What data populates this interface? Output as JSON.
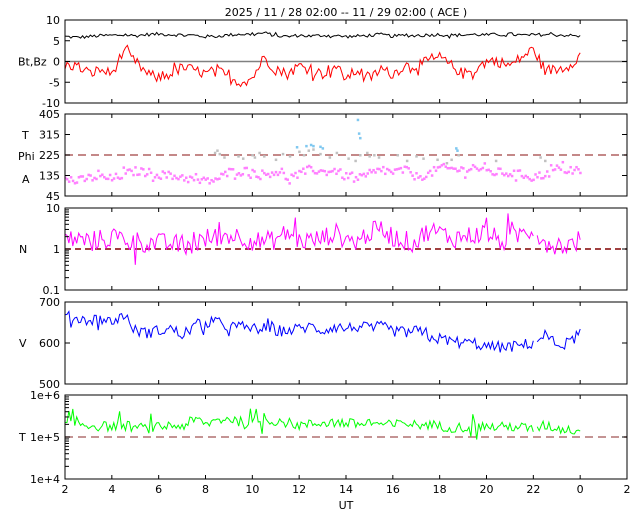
{
  "title": "2025 / 11 / 28   02:00 -- 11 / 29   02:00 ( ACE )",
  "x_axis": {
    "label": "UT",
    "tick_labels": [
      "2",
      "4",
      "6",
      "8",
      "10",
      "12",
      "14",
      "16",
      "18",
      "20",
      "22",
      "0",
      "2"
    ],
    "range_hours": [
      0,
      24
    ],
    "step_hours": 2
  },
  "chart_data": [
    {
      "type": "line",
      "id": "mag",
      "ylabel": "Bt,Bz",
      "ylim": [
        -10,
        10
      ],
      "scale": "linear",
      "tick_labels": [
        "10",
        "5",
        "0",
        "-5",
        "-10"
      ],
      "tick_values": [
        10,
        5,
        0,
        -5,
        -10
      ],
      "reference_line": {
        "value": 0,
        "color": "#808080",
        "style": "solid"
      },
      "x_step_hours": 0.5,
      "series": [
        {
          "name": "Bt",
          "color": "#000000",
          "noise": 0.4,
          "values": [
            6,
            5.8,
            6,
            6.2,
            6.3,
            6.4,
            6.2,
            6.5,
            6.6,
            6.5,
            6.4,
            6.3,
            6,
            6.1,
            6.4,
            6.6,
            6.5,
            6.9,
            6.2,
            6,
            6.3,
            6.1,
            6.3,
            6.2,
            6,
            6.1,
            6.3,
            6.5,
            6.1,
            6.3,
            6.2,
            6.4,
            6.5,
            6.3,
            6.4,
            6.5,
            6.4,
            6.5,
            6.6,
            6.3,
            6.4,
            6.5,
            6.4,
            6.3,
            6
          ]
        },
        {
          "name": "Bz",
          "color": "#ff0000",
          "noise": 1.3,
          "values": [
            -1,
            -1,
            -3,
            -2,
            -3,
            2.5,
            0,
            -3,
            -4,
            -3,
            -1.5,
            -2,
            -3,
            -2,
            -4,
            -5,
            -4,
            1,
            -2,
            -3,
            -1,
            -2,
            -3,
            -1,
            -4,
            -2,
            -4,
            -2,
            -3,
            -1,
            -1,
            0,
            1,
            -1,
            -3,
            -2,
            0,
            0,
            -1,
            1,
            3,
            -2,
            -2,
            -1,
            1.5
          ]
        }
      ]
    },
    {
      "type": "scatter",
      "id": "phi",
      "ylabel_lines": [
        "T",
        "Phi",
        "A"
      ],
      "ylim": [
        45,
        405
      ],
      "scale": "linear",
      "tick_labels": [
        "405",
        "315",
        "225",
        "135",
        "45"
      ],
      "tick_values": [
        405,
        315,
        225,
        135,
        45
      ],
      "reference_line": {
        "value": 225,
        "color": "#b06060",
        "style": "dashed"
      },
      "x_step_hours": 0.5,
      "series": [
        {
          "name": "A",
          "color": "#ff80ff",
          "noise": 18,
          "values": [
            120,
            110,
            125,
            130,
            120,
            140,
            155,
            150,
            140,
            135,
            130,
            115,
            110,
            120,
            150,
            160,
            150,
            140,
            155,
            125,
            140,
            165,
            150,
            160,
            130,
            120,
            140,
            160,
            150,
            160,
            130,
            140,
            170,
            165,
            160,
            175,
            150,
            150,
            145,
            140,
            130,
            140,
            165,
            160,
            150
          ]
        },
        {
          "name": "T",
          "color": "#c0c0c0",
          "points": [
            [
              6.4,
              235
            ],
            [
              6.5,
              245
            ],
            [
              6.6,
              230
            ],
            [
              6.8,
              215
            ],
            [
              7.4,
              220
            ],
            [
              7.6,
              210
            ],
            [
              8.0,
              225
            ],
            [
              8.1,
              215
            ],
            [
              8.3,
              235
            ],
            [
              8.5,
              220
            ],
            [
              9.0,
              205
            ],
            [
              9.3,
              230
            ],
            [
              9.6,
              220
            ],
            [
              10.0,
              240
            ],
            [
              10.2,
              225
            ],
            [
              10.4,
              245
            ],
            [
              10.6,
              250
            ],
            [
              10.9,
              230
            ],
            [
              11.3,
              215
            ],
            [
              11.6,
              235
            ],
            [
              12.1,
              210
            ],
            [
              12.4,
              200
            ],
            [
              12.6,
              225
            ],
            [
              12.9,
              235
            ],
            [
              13.0,
              220
            ],
            [
              13.2,
              225
            ],
            [
              13.4,
              215
            ],
            [
              14.2,
              225
            ],
            [
              14.6,
              200
            ],
            [
              15.0,
              220
            ],
            [
              15.3,
              210
            ],
            [
              15.9,
              205
            ],
            [
              16.3,
              190
            ],
            [
              16.5,
              205
            ],
            [
              16.8,
              225
            ],
            [
              18.4,
              200
            ],
            [
              20.3,
              215
            ],
            [
              20.5,
              200
            ]
          ]
        },
        {
          "name": "T-highlight",
          "color": "#80c8f0",
          "points": [
            [
              10.3,
              265
            ],
            [
              10.5,
              270
            ],
            [
              10.6,
              265
            ],
            [
              10.9,
              262
            ],
            [
              11.0,
              255
            ],
            [
              9.9,
              260
            ],
            [
              12.5,
              380
            ],
            [
              12.55,
              320
            ],
            [
              12.6,
              300
            ],
            [
              16.7,
              255
            ],
            [
              16.75,
              245
            ]
          ]
        }
      ]
    },
    {
      "type": "line",
      "id": "density",
      "ylabel": "N",
      "ylim": [
        0.1,
        10
      ],
      "scale": "log",
      "tick_labels": [
        "10",
        "1",
        "0.1"
      ],
      "tick_values": [
        10,
        1,
        0.1
      ],
      "reference_line": {
        "value": 1,
        "color": "#800000",
        "style": "dashed"
      },
      "x_step_hours": 0.5,
      "series": [
        {
          "name": "N",
          "color": "#ff00ff",
          "noise": 0.25,
          "gap_after_hours": 20,
          "values": [
            1.8,
            1.7,
            1.6,
            1.7,
            1.8,
            1.9,
            1.6,
            1.4,
            1.4,
            1.3,
            1.3,
            1.2,
            1.8,
            2.0,
            2.2,
            2.0,
            1.6,
            1.5,
            1.7,
            2.5,
            1.6,
            1.6,
            1.8,
            2.5,
            1.7,
            1.5,
            2.5,
            3,
            2.0,
            1.6,
            1.4,
            2.8,
            2.5,
            1.8,
            2.0,
            2.2,
            2.5,
            1.6,
            1.5,
            2.5,
            3,
            1.4,
            1.3,
            1.2,
            1.7
          ]
        }
      ]
    },
    {
      "type": "line",
      "id": "speed",
      "ylabel": "V",
      "ylim": [
        500,
        700
      ],
      "scale": "linear",
      "tick_labels": [
        "700",
        "600",
        "500"
      ],
      "tick_values": [
        700,
        600,
        500
      ],
      "x_step_hours": 0.5,
      "series": [
        {
          "name": "V",
          "color": "#0000ff",
          "noise": 14,
          "gap_after_hours": 20,
          "values": [
            665,
            660,
            655,
            660,
            650,
            670,
            630,
            625,
            630,
            635,
            620,
            640,
            645,
            650,
            640,
            640,
            635,
            635,
            630,
            630,
            635,
            640,
            630,
            640,
            635,
            640,
            635,
            640,
            630,
            625,
            630,
            615,
            610,
            605,
            600,
            600,
            590,
            590,
            590,
            595,
            600,
            620,
            595,
            600,
            625
          ]
        }
      ]
    },
    {
      "type": "line",
      "id": "temperature",
      "ylabel": "T",
      "ylim": [
        10000,
        1000000
      ],
      "scale": "log",
      "tick_labels": [
        "1e+6",
        "1e+5",
        "1e+4"
      ],
      "tick_values": [
        1000000,
        100000,
        10000
      ],
      "reference_line": {
        "value": 100000,
        "color": "#b07070",
        "style": "dashed"
      },
      "x_step_hours": 0.5,
      "series": [
        {
          "name": "T",
          "color": "#00ff00",
          "noise": 0.12,
          "gap_after_hours": 20,
          "values": [
            200000,
            210000,
            190000,
            180000,
            180000,
            190000,
            170000,
            160000,
            170000,
            190000,
            180000,
            250000,
            200000,
            250000,
            280000,
            230000,
            220000,
            250000,
            240000,
            220000,
            190000,
            200000,
            220000,
            230000,
            210000,
            200000,
            220000,
            200000,
            190000,
            220000,
            190000,
            200000,
            180000,
            170000,
            170000,
            180000,
            180000,
            170000,
            180000,
            170000,
            150000,
            190000,
            160000,
            150000,
            140000
          ]
        }
      ]
    }
  ]
}
